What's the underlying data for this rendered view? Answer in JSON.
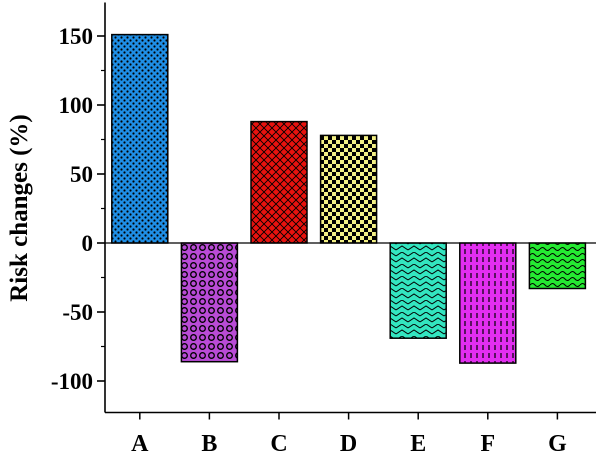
{
  "chart_data": {
    "type": "bar",
    "title": "",
    "xlabel": "",
    "ylabel": "Risk changes (%)",
    "ylim": [
      -125,
      175
    ],
    "yticks": [
      150,
      100,
      50,
      0,
      -50,
      -100
    ],
    "ytick_labels": [
      "150",
      "100",
      "50",
      "0",
      "-50",
      "-100"
    ],
    "categories": [
      "A",
      "B",
      "C",
      "D",
      "E",
      "F",
      "G"
    ],
    "values": [
      151,
      -86,
      88,
      78,
      -69,
      -87,
      -33
    ],
    "colors": [
      "#1f8fe6",
      "#b94bd6",
      "#e8120e",
      "#f2ef84",
      "#33e5c0",
      "#e22ef0",
      "#25ea32"
    ],
    "grid": false,
    "legend": "none"
  }
}
